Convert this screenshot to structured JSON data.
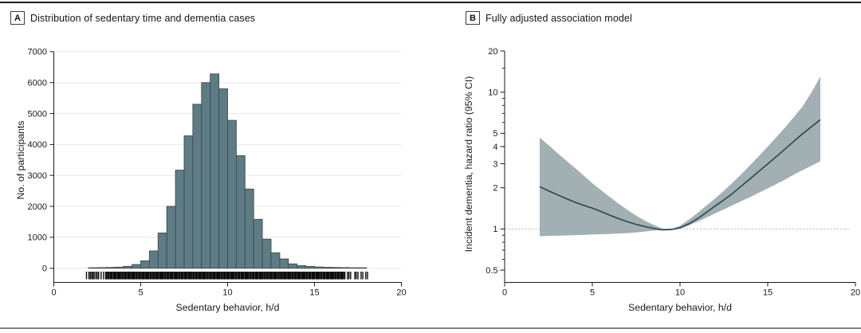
{
  "figure": {
    "panels": {
      "a": {
        "label": "A",
        "title": "Distribution of sedentary time and dementia cases",
        "xlabel": "Sedentary behavior, h/d",
        "ylabel": "No. of participants"
      },
      "b": {
        "label": "B",
        "title": "Fully adjusted association model",
        "xlabel": "Sedentary behavior, h/d",
        "ylabel": "Incident dementia, hazard ratio (95% CI)"
      }
    },
    "colors": {
      "bar_fill": "#5d7c86",
      "bar_stroke": "#46494b",
      "grid": "#e8e8e8",
      "axis": "#1a1a1a",
      "band": "#a2b0b4",
      "curve": "#2c4b54",
      "rug": "#0c0c0c",
      "reference": "#9a9a9a",
      "text": "#1a1a1a"
    }
  },
  "chart_data": [
    {
      "type": "bar",
      "panel": "A",
      "title": "Distribution of sedentary time and dementia cases",
      "xlabel": "Sedentary behavior, h/d",
      "ylabel": "No. of participants",
      "xlim": [
        0,
        20
      ],
      "ylim": [
        0,
        7000
      ],
      "xticks": [
        0,
        5,
        10,
        15,
        20
      ],
      "yticks": [
        0,
        1000,
        2000,
        3000,
        4000,
        5000,
        6000,
        7000
      ],
      "grid": "horizontal",
      "bin_width": 0.5,
      "bins_start": 2.0,
      "counts": [
        15,
        20,
        25,
        35,
        60,
        120,
        240,
        560,
        1140,
        2000,
        3170,
        4280,
        5300,
        6000,
        6280,
        5800,
        4780,
        3640,
        2560,
        1580,
        940,
        500,
        300,
        140,
        85,
        60,
        40,
        30,
        25,
        20,
        15,
        10
      ],
      "rug": {
        "band_from": 2.95,
        "band_to": 16.78,
        "left_ticks": [
          1.88,
          2.02,
          2.1,
          2.18,
          2.25,
          2.32,
          2.42,
          2.5,
          2.58,
          2.72,
          2.86
        ],
        "right_ticks": [
          16.9,
          16.98,
          17.08,
          17.32,
          17.4,
          17.5,
          17.68,
          17.78,
          17.95,
          18.05
        ]
      }
    },
    {
      "type": "line",
      "panel": "B",
      "title": "Fully adjusted association model",
      "xlabel": "Sedentary behavior, h/d",
      "ylabel": "Incident dementia, hazard ratio (95% CI)",
      "xlim": [
        0,
        20
      ],
      "xticks": [
        0,
        5,
        10,
        15,
        20
      ],
      "yscale": "log",
      "ylim": [
        0.5,
        20
      ],
      "yticks_labeled": [
        0.5,
        1,
        2,
        3,
        4,
        5,
        10,
        20
      ],
      "yticks_minor": [
        0.6,
        0.7,
        0.8,
        0.9,
        6,
        7,
        8,
        9,
        15
      ],
      "reference_line": 1,
      "legend_position": "none",
      "x": [
        2,
        2.5,
        3,
        3.5,
        4,
        4.5,
        5,
        5.5,
        6,
        6.5,
        7,
        7.5,
        8,
        8.5,
        9,
        9.5,
        10,
        10.5,
        11,
        11.5,
        12,
        12.5,
        13,
        13.5,
        14,
        14.5,
        15,
        15.5,
        16,
        16.5,
        17,
        17.5,
        18
      ],
      "hazard_ratio": [
        2.04,
        1.9,
        1.78,
        1.67,
        1.57,
        1.49,
        1.42,
        1.34,
        1.26,
        1.19,
        1.13,
        1.08,
        1.04,
        1.01,
        0.985,
        0.99,
        1.02,
        1.09,
        1.19,
        1.32,
        1.47,
        1.63,
        1.82,
        2.06,
        2.33,
        2.64,
        2.99,
        3.39,
        3.85,
        4.38,
        4.98,
        5.6,
        6.3
      ],
      "ci_lower": [
        0.885,
        0.89,
        0.893,
        0.897,
        0.9,
        0.905,
        0.91,
        0.915,
        0.92,
        0.926,
        0.933,
        0.944,
        0.958,
        0.973,
        0.983,
        0.99,
        1.005,
        1.06,
        1.13,
        1.21,
        1.3,
        1.39,
        1.49,
        1.6,
        1.71,
        1.84,
        1.98,
        2.13,
        2.3,
        2.5,
        2.7,
        2.9,
        3.13
      ],
      "ci_upper": [
        4.65,
        4.1,
        3.6,
        3.17,
        2.8,
        2.46,
        2.16,
        1.92,
        1.71,
        1.53,
        1.38,
        1.25,
        1.15,
        1.07,
        1.005,
        1.0,
        1.055,
        1.17,
        1.31,
        1.48,
        1.67,
        1.9,
        2.18,
        2.52,
        2.93,
        3.42,
        4.0,
        4.7,
        5.55,
        6.6,
        7.9,
        10.0,
        13.0
      ]
    }
  ]
}
